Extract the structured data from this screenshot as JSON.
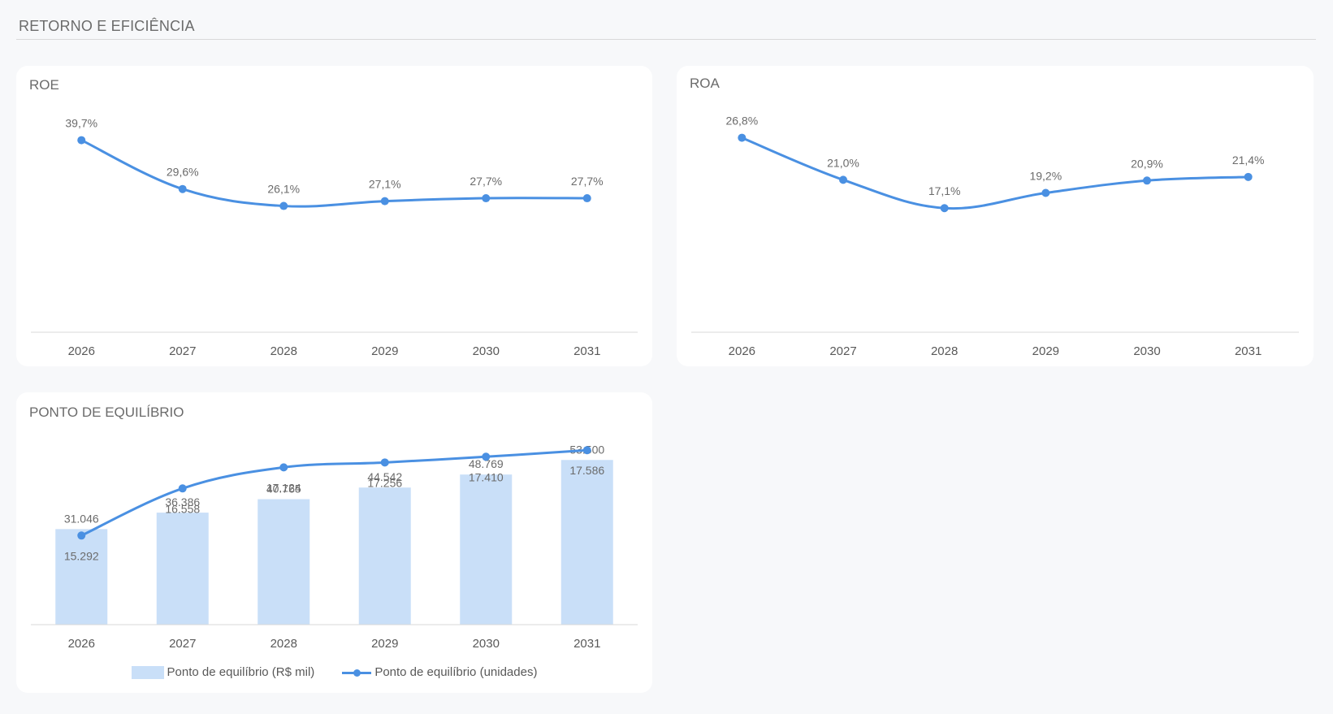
{
  "page": {
    "section_title": "RETORNO E EFICIÊNCIA"
  },
  "colors": {
    "line": "#4a90e2",
    "bar": "#c9dff8",
    "axis": "#d9d9d9"
  },
  "chart_data": [
    {
      "id": "roe",
      "type": "line",
      "title": "ROE",
      "categories": [
        "2026",
        "2027",
        "2028",
        "2029",
        "2030",
        "2031"
      ],
      "series": [
        {
          "values": [
            39.7,
            29.6,
            26.1,
            27.1,
            27.7,
            27.7
          ],
          "labels": [
            "39,7%",
            "29,6%",
            "26,1%",
            "27,1%",
            "27,7%",
            "27,7%"
          ]
        }
      ],
      "ylim": [
        0,
        45
      ],
      "grid": false
    },
    {
      "id": "roa",
      "type": "line",
      "title": "ROA",
      "categories": [
        "2026",
        "2027",
        "2028",
        "2029",
        "2030",
        "2031"
      ],
      "series": [
        {
          "values": [
            26.8,
            21.0,
            17.1,
            19.2,
            20.9,
            21.4
          ],
          "labels": [
            "26,8%",
            "21,0%",
            "17,1%",
            "19,2%",
            "20,9%",
            "21,4%"
          ]
        }
      ],
      "ylim": [
        0,
        30
      ],
      "grid": false
    },
    {
      "id": "equilibrio",
      "type": "bar",
      "title": "PONTO DE EQUILÍBRIO",
      "categories": [
        "2026",
        "2027",
        "2028",
        "2029",
        "2030",
        "2031"
      ],
      "series": [
        {
          "name": "Ponto de equilíbrio (R$ mil)",
          "type": "bar",
          "values": [
            31046,
            36386,
            40765,
            44542,
            48769,
            53500
          ],
          "labels": [
            "31.046",
            "36.386",
            "40.765",
            "44.542",
            "48.769",
            "53.500"
          ]
        },
        {
          "name": "Ponto de equilíbrio (unidades)",
          "type": "line",
          "values": [
            15292,
            16558,
            17124,
            17256,
            17410,
            17586
          ],
          "labels": [
            "15.292",
            "16.558",
            "17.124",
            "17.256",
            "17.410",
            "17.586"
          ]
        }
      ],
      "legend": "bottom",
      "grid": false
    }
  ]
}
